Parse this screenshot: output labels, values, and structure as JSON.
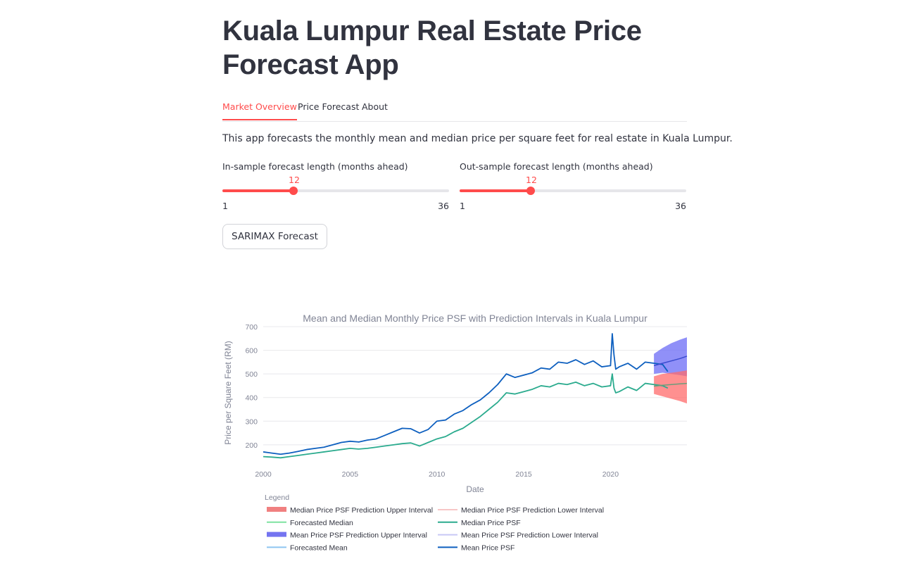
{
  "app": {
    "title": "Kuala Lumpur Real Estate Price Forecast App"
  },
  "tabs": [
    {
      "label": "Market Overview",
      "active": true
    },
    {
      "label": "Price Forecast",
      "active": false
    },
    {
      "label": "About",
      "active": false
    }
  ],
  "description": "This app forecasts the monthly mean and median price per square feet for real estate in Kuala Lumpur.",
  "sliders": {
    "in_sample": {
      "label": "In-sample forecast length (months ahead)",
      "value": "12",
      "min": "1",
      "max": "36"
    },
    "out_sample": {
      "label": "Out-sample forecast length (months ahead)",
      "value": "12",
      "min": "1",
      "max": "36"
    }
  },
  "button": {
    "label": "SARIMAX Forecast"
  },
  "colors": {
    "accent": "#ff4b4b",
    "mean": "#0d5fbf",
    "median": "#2bab8e",
    "mean_interval": "#6b6bf5",
    "median_interval": "#ff6b6b"
  },
  "chart_data": {
    "type": "line",
    "title": "Mean and Median Monthly Price PSF with Prediction Intervals in Kuala Lumpur",
    "xlabel": "Date",
    "ylabel": "Price per Square Feet (RM)",
    "x_ticks": [
      "2000",
      "2005",
      "2010",
      "2015",
      "2020"
    ],
    "y_ticks": [
      "200",
      "300",
      "400",
      "500",
      "600",
      "700"
    ],
    "xlim": [
      2000,
      2024.4
    ],
    "ylim": [
      140,
      700
    ],
    "grid": true,
    "legend_title": "Legend",
    "legend_placement": "bottom",
    "legend": [
      {
        "name": "Median Price PSF Prediction Upper Interval",
        "color": "#f08080",
        "kind": "band"
      },
      {
        "name": "Median Price PSF Prediction Lower Interval",
        "color": "#f7c6c6",
        "kind": "line"
      },
      {
        "name": "Forecasted Median",
        "color": "#7ee2a0",
        "kind": "line"
      },
      {
        "name": "Median Price PSF",
        "color": "#2bab8e",
        "kind": "line"
      },
      {
        "name": "Mean Price PSF Prediction Upper Interval",
        "color": "#7474f0",
        "kind": "band"
      },
      {
        "name": "Mean Price PSF Prediction Lower Interval",
        "color": "#c8c8f5",
        "kind": "line"
      },
      {
        "name": "Forecasted Mean",
        "color": "#8ec5f0",
        "kind": "line"
      },
      {
        "name": "Mean Price PSF",
        "color": "#0d5fbf",
        "kind": "line"
      }
    ],
    "series": [
      {
        "name": "Mean Price PSF",
        "x": [
          2000,
          2000.5,
          2001,
          2001.5,
          2002,
          2002.5,
          2003,
          2003.5,
          2004,
          2004.5,
          2005,
          2005.5,
          2006,
          2006.5,
          2007,
          2007.5,
          2008,
          2008.5,
          2009,
          2009.5,
          2010,
          2010.5,
          2011,
          2011.5,
          2012,
          2012.5,
          2013,
          2013.5,
          2014,
          2014.5,
          2015,
          2015.5,
          2016,
          2016.5,
          2017,
          2017.5,
          2018,
          2018.5,
          2019,
          2019.5,
          2020,
          2020.1,
          2020.2,
          2020.3,
          2020.5,
          2021,
          2021.5,
          2022,
          2022.5,
          2023,
          2023.3
        ],
        "y": [
          170,
          165,
          160,
          165,
          172,
          180,
          185,
          190,
          200,
          210,
          215,
          212,
          220,
          225,
          240,
          255,
          270,
          268,
          250,
          265,
          300,
          305,
          330,
          345,
          370,
          390,
          420,
          455,
          500,
          485,
          495,
          505,
          525,
          520,
          550,
          545,
          560,
          540,
          555,
          530,
          535,
          670,
          580,
          520,
          530,
          545,
          520,
          550,
          545,
          540,
          510
        ]
      },
      {
        "name": "Median Price PSF",
        "x": [
          2000,
          2000.5,
          2001,
          2001.5,
          2002,
          2002.5,
          2003,
          2003.5,
          2004,
          2004.5,
          2005,
          2005.5,
          2006,
          2006.5,
          2007,
          2007.5,
          2008,
          2008.5,
          2009,
          2009.5,
          2010,
          2010.5,
          2011,
          2011.5,
          2012,
          2012.5,
          2013,
          2013.5,
          2014,
          2014.5,
          2015,
          2015.5,
          2016,
          2016.5,
          2017,
          2017.5,
          2018,
          2018.5,
          2019,
          2019.5,
          2020,
          2020.1,
          2020.2,
          2020.3,
          2020.5,
          2021,
          2021.5,
          2022,
          2022.5,
          2023,
          2023.3
        ],
        "y": [
          150,
          148,
          145,
          150,
          155,
          160,
          165,
          170,
          175,
          180,
          185,
          182,
          185,
          190,
          195,
          200,
          205,
          208,
          195,
          210,
          225,
          235,
          255,
          270,
          295,
          320,
          350,
          380,
          420,
          415,
          425,
          435,
          450,
          445,
          460,
          455,
          465,
          450,
          460,
          445,
          450,
          500,
          440,
          420,
          425,
          445,
          430,
          460,
          455,
          450,
          440
        ]
      },
      {
        "name": "Forecasted Mean",
        "x": [
          2022.5,
          2023,
          2023.5,
          2024,
          2024.4
        ],
        "y": [
          535,
          545,
          555,
          565,
          575
        ]
      },
      {
        "name": "Forecasted Median",
        "x": [
          2022.5,
          2023,
          2023.5,
          2024,
          2024.4
        ],
        "y": [
          448,
          452,
          455,
          458,
          460
        ]
      },
      {
        "name": "Mean Price PSF Prediction Interval",
        "x": [
          2022.5,
          2023,
          2023.5,
          2024,
          2024.4
        ],
        "upper": [
          585,
          610,
          630,
          645,
          655
        ],
        "lower": [
          500,
          505,
          500,
          495,
          490
        ]
      },
      {
        "name": "Median Price PSF Prediction Interval",
        "x": [
          2022.5,
          2023,
          2023.5,
          2024,
          2024.4
        ],
        "upper": [
          490,
          500,
          505,
          510,
          515
        ],
        "lower": [
          415,
          405,
          395,
          385,
          375
        ]
      }
    ]
  }
}
